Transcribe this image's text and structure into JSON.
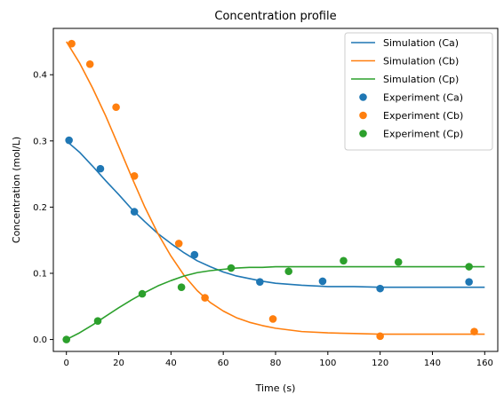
{
  "chart_data": {
    "type": "line",
    "title": "Concentration profile",
    "xlabel": "Time (s)",
    "ylabel": "Concentration (mol/L)",
    "xlim": [
      -5,
      165
    ],
    "ylim": [
      -0.018,
      0.47
    ],
    "xticks": [
      0,
      20,
      40,
      60,
      80,
      100,
      120,
      140,
      160
    ],
    "yticks": [
      0.0,
      0.1,
      0.2,
      0.3,
      0.4
    ],
    "grid": false,
    "legend_position": "top-right",
    "series": [
      {
        "name": "Simulation (Ca)",
        "kind": "line",
        "color": "#1f77b4",
        "x": [
          0,
          5,
          10,
          15,
          20,
          25,
          30,
          35,
          40,
          45,
          50,
          55,
          60,
          65,
          70,
          75,
          80,
          90,
          100,
          110,
          120,
          130,
          140,
          150,
          160
        ],
        "y": [
          0.3,
          0.283,
          0.262,
          0.24,
          0.219,
          0.197,
          0.178,
          0.16,
          0.145,
          0.131,
          0.119,
          0.11,
          0.102,
          0.096,
          0.092,
          0.088,
          0.085,
          0.082,
          0.08,
          0.08,
          0.079,
          0.079,
          0.079,
          0.079,
          0.079
        ]
      },
      {
        "name": "Simulation (Cb)",
        "kind": "line",
        "color": "#ff7f0e",
        "x": [
          0,
          5,
          10,
          15,
          20,
          25,
          30,
          35,
          40,
          45,
          50,
          55,
          60,
          65,
          70,
          75,
          80,
          90,
          100,
          110,
          120,
          130,
          140,
          150,
          160
        ],
        "y": [
          0.45,
          0.418,
          0.38,
          0.338,
          0.292,
          0.245,
          0.2,
          0.16,
          0.126,
          0.097,
          0.074,
          0.056,
          0.043,
          0.033,
          0.026,
          0.021,
          0.017,
          0.012,
          0.01,
          0.009,
          0.008,
          0.008,
          0.008,
          0.008,
          0.008
        ]
      },
      {
        "name": "Simulation (Cp)",
        "kind": "line",
        "color": "#2ca02c",
        "x": [
          0,
          5,
          10,
          15,
          20,
          25,
          30,
          35,
          40,
          45,
          50,
          55,
          60,
          65,
          70,
          75,
          80,
          90,
          100,
          110,
          120,
          130,
          140,
          150,
          160
        ],
        "y": [
          0.0,
          0.01,
          0.022,
          0.035,
          0.048,
          0.06,
          0.071,
          0.081,
          0.089,
          0.096,
          0.101,
          0.104,
          0.106,
          0.108,
          0.109,
          0.109,
          0.11,
          0.11,
          0.11,
          0.11,
          0.11,
          0.11,
          0.11,
          0.11,
          0.11
        ]
      },
      {
        "name": "Experiment (Ca)",
        "kind": "scatter",
        "color": "#1f77b4",
        "x": [
          1,
          13,
          26,
          49,
          74,
          98,
          120,
          154
        ],
        "y": [
          0.301,
          0.258,
          0.193,
          0.128,
          0.087,
          0.088,
          0.077,
          0.087
        ]
      },
      {
        "name": "Experiment (Cb)",
        "kind": "scatter",
        "color": "#ff7f0e",
        "x": [
          2,
          9,
          19,
          26,
          43,
          53,
          79,
          120,
          156
        ],
        "y": [
          0.447,
          0.416,
          0.351,
          0.247,
          0.145,
          0.063,
          0.031,
          0.005,
          0.012
        ]
      },
      {
        "name": "Experiment (Cp)",
        "kind": "scatter",
        "color": "#2ca02c",
        "x": [
          0,
          12,
          29,
          44,
          63,
          85,
          106,
          127,
          154
        ],
        "y": [
          0.0,
          0.028,
          0.069,
          0.079,
          0.108,
          0.103,
          0.119,
          0.117,
          0.11
        ]
      }
    ]
  }
}
